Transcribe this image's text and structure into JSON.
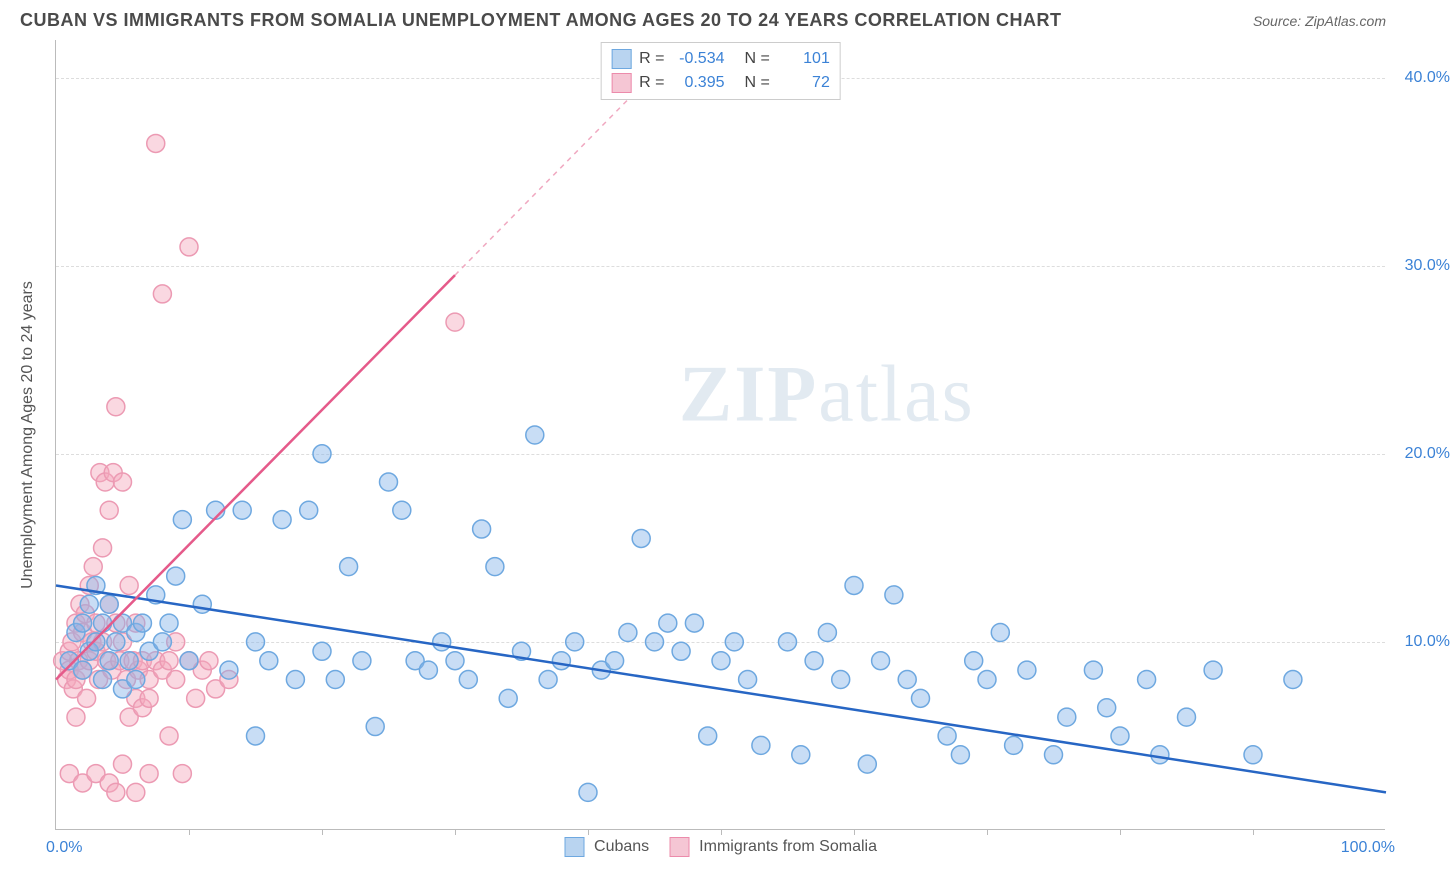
{
  "header": {
    "title": "CUBAN VS IMMIGRANTS FROM SOMALIA UNEMPLOYMENT AMONG AGES 20 TO 24 YEARS CORRELATION CHART",
    "source": "Source: ZipAtlas.com"
  },
  "watermark": {
    "prefix": "ZIP",
    "suffix": "atlas"
  },
  "chart": {
    "type": "scatter",
    "ylabel": "Unemployment Among Ages 20 to 24 years",
    "xlim": [
      0,
      100
    ],
    "ylim": [
      0,
      42
    ],
    "xticks": [
      10,
      20,
      30,
      40,
      50,
      60,
      70,
      80,
      90
    ],
    "yticks": [
      10,
      20,
      30,
      40
    ],
    "ytick_labels": [
      "10.0%",
      "20.0%",
      "30.0%",
      "40.0%"
    ],
    "x_start_label": "0.0%",
    "x_end_label": "100.0%",
    "grid_color": "#dddddd",
    "axis_color": "#bbbbbb",
    "background_color": "#ffffff",
    "tick_label_color": "#3b82d6",
    "label_fontsize": 16,
    "title_fontsize": 18,
    "marker_radius": 9,
    "marker_stroke_width": 1.5,
    "series": {
      "cubans": {
        "label": "Cubans",
        "fill": "rgba(133, 179, 232, 0.45)",
        "stroke": "#6ea8e0",
        "swatch_fill": "#b9d4f0",
        "swatch_stroke": "#6ea8e0",
        "r_value": "-0.534",
        "n_value": "101",
        "trend": {
          "x1": 0,
          "y1": 13.0,
          "x2": 100,
          "y2": 2.0,
          "color": "#2766c4",
          "width": 2.5
        },
        "points": [
          [
            1,
            9
          ],
          [
            1.5,
            10.5
          ],
          [
            2,
            8.5
          ],
          [
            2,
            11
          ],
          [
            2.5,
            9.5
          ],
          [
            2.5,
            12
          ],
          [
            3,
            10
          ],
          [
            3,
            13
          ],
          [
            3.5,
            11
          ],
          [
            3.5,
            8
          ],
          [
            4,
            9
          ],
          [
            4,
            12
          ],
          [
            4.5,
            10
          ],
          [
            5,
            11
          ],
          [
            5,
            7.5
          ],
          [
            5.5,
            9
          ],
          [
            6,
            10.5
          ],
          [
            6,
            8
          ],
          [
            6.5,
            11
          ],
          [
            7,
            9.5
          ],
          [
            7.5,
            12.5
          ],
          [
            8,
            10
          ],
          [
            8.5,
            11
          ],
          [
            9,
            13.5
          ],
          [
            9.5,
            16.5
          ],
          [
            10,
            9
          ],
          [
            11,
            12
          ],
          [
            12,
            17
          ],
          [
            13,
            8.5
          ],
          [
            14,
            17
          ],
          [
            15,
            10
          ],
          [
            15,
            5
          ],
          [
            16,
            9
          ],
          [
            17,
            16.5
          ],
          [
            18,
            8
          ],
          [
            19,
            17
          ],
          [
            20,
            9.5
          ],
          [
            20,
            20
          ],
          [
            21,
            8
          ],
          [
            22,
            14
          ],
          [
            23,
            9
          ],
          [
            24,
            5.5
          ],
          [
            25,
            18.5
          ],
          [
            26,
            17
          ],
          [
            27,
            9
          ],
          [
            28,
            8.5
          ],
          [
            29,
            10
          ],
          [
            30,
            9
          ],
          [
            31,
            8
          ],
          [
            32,
            16
          ],
          [
            33,
            14
          ],
          [
            34,
            7
          ],
          [
            35,
            9.5
          ],
          [
            36,
            21
          ],
          [
            37,
            8
          ],
          [
            38,
            9
          ],
          [
            39,
            10
          ],
          [
            40,
            2
          ],
          [
            41,
            8.5
          ],
          [
            42,
            9
          ],
          [
            43,
            10.5
          ],
          [
            44,
            15.5
          ],
          [
            45,
            10
          ],
          [
            46,
            11
          ],
          [
            47,
            9.5
          ],
          [
            48,
            11
          ],
          [
            49,
            5
          ],
          [
            50,
            9
          ],
          [
            51,
            10
          ],
          [
            52,
            8
          ],
          [
            53,
            4.5
          ],
          [
            55,
            10
          ],
          [
            56,
            4
          ],
          [
            57,
            9
          ],
          [
            58,
            10.5
          ],
          [
            59,
            8
          ],
          [
            60,
            13
          ],
          [
            61,
            3.5
          ],
          [
            62,
            9
          ],
          [
            63,
            12.5
          ],
          [
            64,
            8
          ],
          [
            65,
            7
          ],
          [
            67,
            5
          ],
          [
            68,
            4
          ],
          [
            69,
            9
          ],
          [
            70,
            8
          ],
          [
            71,
            10.5
          ],
          [
            72,
            4.5
          ],
          [
            73,
            8.5
          ],
          [
            75,
            4
          ],
          [
            76,
            6
          ],
          [
            78,
            8.5
          ],
          [
            79,
            6.5
          ],
          [
            80,
            5
          ],
          [
            82,
            8
          ],
          [
            83,
            4
          ],
          [
            85,
            6
          ],
          [
            87,
            8.5
          ],
          [
            90,
            4
          ],
          [
            93,
            8
          ]
        ]
      },
      "somalia": {
        "label": "Immigrants from Somalia",
        "fill": "rgba(244, 168, 189, 0.45)",
        "stroke": "#ec9ab3",
        "swatch_fill": "#f5c6d4",
        "swatch_stroke": "#ec8bab",
        "r_value": "0.395",
        "n_value": "72",
        "trend_solid": {
          "x1": 0,
          "y1": 8.0,
          "x2": 30,
          "y2": 29.5,
          "color": "#e55a8a",
          "width": 2.5
        },
        "trend_dashed": {
          "x1": 30,
          "y1": 29.5,
          "x2": 47,
          "y2": 41.7,
          "color": "#f0a8c0",
          "width": 1.5
        },
        "points": [
          [
            0.5,
            9
          ],
          [
            0.8,
            8
          ],
          [
            1,
            8.5
          ],
          [
            1,
            9.5
          ],
          [
            1.2,
            10
          ],
          [
            1.3,
            7.5
          ],
          [
            1.5,
            11
          ],
          [
            1.5,
            8
          ],
          [
            1.7,
            9
          ],
          [
            1.8,
            12
          ],
          [
            2,
            8.5
          ],
          [
            2,
            10.5
          ],
          [
            2.2,
            11.5
          ],
          [
            2.3,
            7
          ],
          [
            2.5,
            13
          ],
          [
            2.5,
            9
          ],
          [
            2.7,
            10
          ],
          [
            2.8,
            14
          ],
          [
            3,
            9.5
          ],
          [
            3,
            11
          ],
          [
            3.2,
            8
          ],
          [
            3.3,
            19
          ],
          [
            3.5,
            15
          ],
          [
            3.5,
            10
          ],
          [
            3.7,
            18.5
          ],
          [
            3.8,
            9
          ],
          [
            4,
            12
          ],
          [
            4,
            17
          ],
          [
            4.2,
            8.5
          ],
          [
            4.3,
            19
          ],
          [
            4.5,
            11
          ],
          [
            4.5,
            22.5
          ],
          [
            4.8,
            9
          ],
          [
            5,
            10
          ],
          [
            5,
            18.5
          ],
          [
            5.3,
            8
          ],
          [
            5.5,
            13
          ],
          [
            5.5,
            6
          ],
          [
            5.8,
            9
          ],
          [
            6,
            7
          ],
          [
            6,
            11
          ],
          [
            6.2,
            8.5
          ],
          [
            6.5,
            9
          ],
          [
            6.5,
            6.5
          ],
          [
            7,
            8
          ],
          [
            7,
            7
          ],
          [
            7.5,
            9
          ],
          [
            7.5,
            36.5
          ],
          [
            8,
            8.5
          ],
          [
            8,
            28.5
          ],
          [
            8.5,
            9
          ],
          [
            8.5,
            5
          ],
          [
            9,
            8
          ],
          [
            9,
            10
          ],
          [
            9.5,
            3
          ],
          [
            10,
            31
          ],
          [
            10,
            9
          ],
          [
            10.5,
            7
          ],
          [
            11,
            8.5
          ],
          [
            11.5,
            9
          ],
          [
            12,
            7.5
          ],
          [
            13,
            8
          ],
          [
            1,
            3
          ],
          [
            2,
            2.5
          ],
          [
            3,
            3
          ],
          [
            4,
            2.5
          ],
          [
            4.5,
            2
          ],
          [
            5,
            3.5
          ],
          [
            6,
            2
          ],
          [
            7,
            3
          ],
          [
            1.5,
            6
          ],
          [
            30,
            27
          ]
        ]
      }
    }
  },
  "legend_top": {
    "rows": [
      {
        "series_key": "cubans",
        "r_label": "R =",
        "n_label": "N ="
      },
      {
        "series_key": "somalia",
        "r_label": "R =",
        "n_label": "N ="
      }
    ]
  },
  "legend_bottom": {
    "items": [
      {
        "series_key": "cubans"
      },
      {
        "series_key": "somalia"
      }
    ]
  }
}
